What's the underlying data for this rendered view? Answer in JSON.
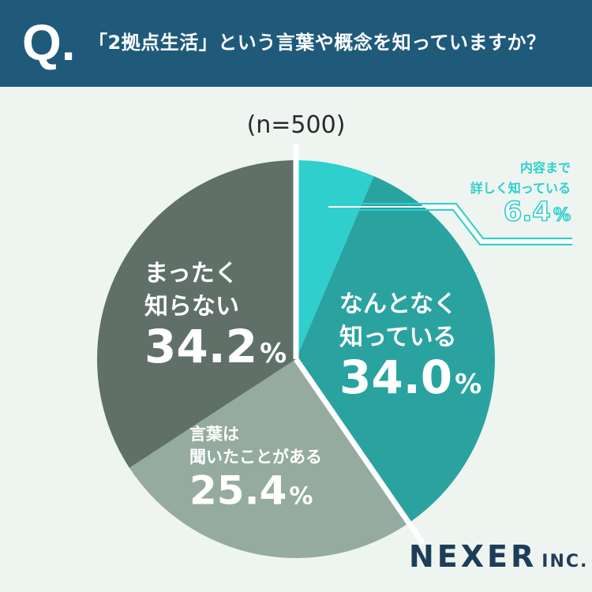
{
  "header": {
    "q_mark": "Q.",
    "question": "「2拠点生活」という言葉や概念を知っていますか？"
  },
  "logo": {
    "main": "NEXER",
    "suffix": "INC."
  },
  "chart_data": {
    "type": "pie",
    "sample_label": "(n=500)",
    "start_angle_deg": 0,
    "direction": "clockwise",
    "slices": [
      {
        "label_lines": [
          "内容まで",
          "詳しく知っている"
        ],
        "value": 6.4,
        "value_text": "6.4",
        "unit": "%",
        "color": "#2ecfcc",
        "label_color": "#2ecfcc",
        "label_style": "callout"
      },
      {
        "label_lines": [
          "なんとなく",
          "知っている"
        ],
        "value": 34.0,
        "value_text": "34.0",
        "unit": "%",
        "color": "#2aa3a0",
        "label_color": "#ffffff",
        "label_style": "inside"
      },
      {
        "label_lines": [
          "言葉は",
          "聞いたことがある"
        ],
        "value": 25.4,
        "value_text": "25.4",
        "unit": "%",
        "color": "#95aba0",
        "label_color": "#ffffff",
        "label_style": "inside"
      },
      {
        "label_lines": [
          "まったく",
          "知らない"
        ],
        "value": 34.2,
        "value_text": "34.2",
        "unit": "%",
        "color": "#607068",
        "label_color": "#ffffff",
        "label_style": "inside"
      }
    ]
  }
}
